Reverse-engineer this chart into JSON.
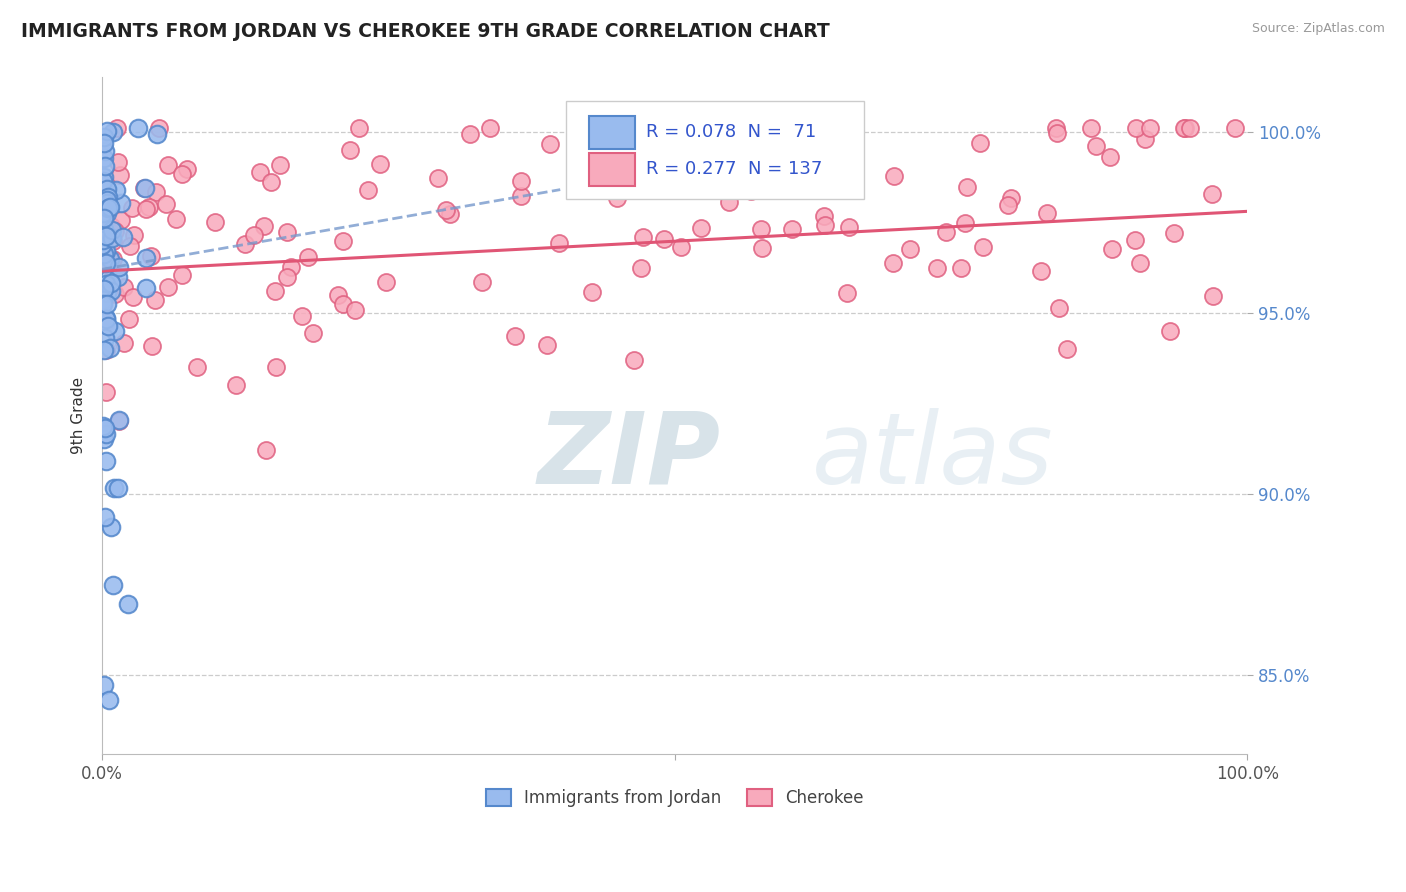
{
  "title": "IMMIGRANTS FROM JORDAN VS CHEROKEE 9TH GRADE CORRELATION CHART",
  "source_text": "Source: ZipAtlas.com",
  "ylabel": "9th Grade",
  "y_tick_labels": [
    "85.0%",
    "90.0%",
    "95.0%",
    "100.0%"
  ],
  "y_tick_values": [
    0.85,
    0.9,
    0.95,
    1.0
  ],
  "x_range": [
    0.0,
    1.0
  ],
  "y_range": [
    0.828,
    1.015
  ],
  "legend_title_color": "#3355cc",
  "blue_color": "#5588cc",
  "blue_fill": "#99bbee",
  "pink_color": "#e06080",
  "pink_fill": "#f8aabc",
  "trendline_blue_color": "#7799cc",
  "trendline_pink_color": "#e05575",
  "watermark_color": "#ccdde8",
  "background_color": "#ffffff",
  "watermark_zip_color": "#b8ccd8",
  "watermark_atlas_color": "#d4e4ef"
}
